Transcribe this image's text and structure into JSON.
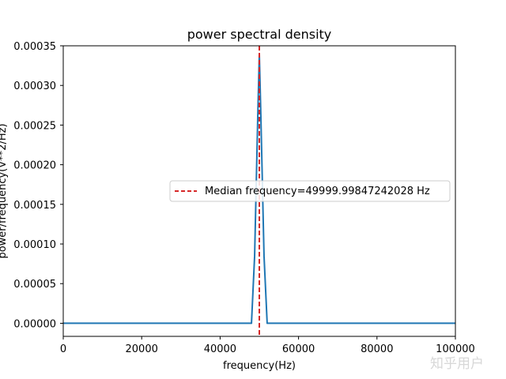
{
  "chart_data": {
    "type": "line",
    "title": "power spectral density",
    "xlabel": "frequency(Hz)",
    "ylabel": "power/frequency(V**2/Hz)",
    "xlim": [
      0,
      100000
    ],
    "ylim": [
      -1.65e-05,
      0.00035
    ],
    "xticks": [
      0,
      20000,
      40000,
      60000,
      80000,
      100000
    ],
    "xtick_labels": [
      "0",
      "20000",
      "40000",
      "60000",
      "80000",
      "100000"
    ],
    "yticks": [
      0,
      5e-05,
      0.0001,
      0.00015,
      0.0002,
      0.00025,
      0.0003,
      0.00035
    ],
    "ytick_labels": [
      "0.00000",
      "0.00005",
      "0.00010",
      "0.00015",
      "0.00020",
      "0.00025",
      "0.00030",
      "0.00035"
    ],
    "grid": false,
    "legend_position": "center-right",
    "series": [
      {
        "name": "",
        "color": "#1f77b4",
        "x": [
          0,
          48000,
          48800,
          49600,
          50000,
          50400,
          51200,
          52000,
          100000
        ],
        "y": [
          0,
          0,
          8.5e-05,
          0.00026,
          0.00034,
          0.00026,
          8.5e-05,
          0,
          0
        ]
      }
    ],
    "reference_lines": [
      {
        "orientation": "vertical",
        "x": 49999.99847242028,
        "style": "dashed",
        "color": "#d62728",
        "label": "Median frequency=49999.99847242028 Hz"
      }
    ]
  },
  "watermark": "知乎用户"
}
